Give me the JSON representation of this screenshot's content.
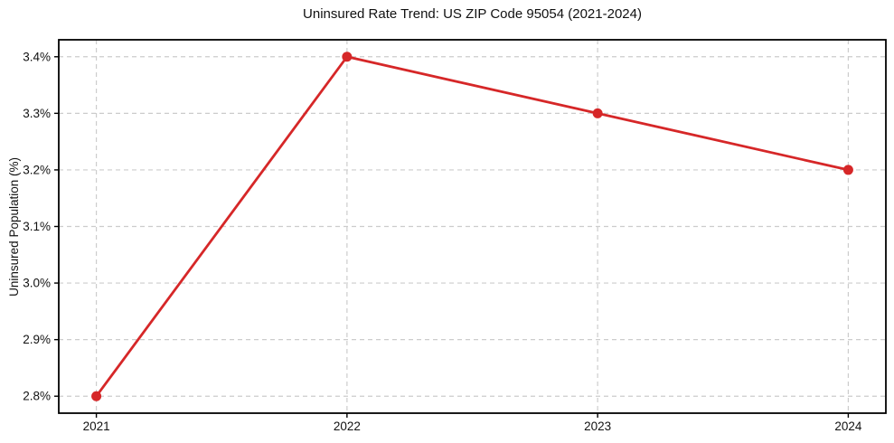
{
  "page": {
    "background": "#ffffff"
  },
  "chart_data": {
    "type": "line",
    "title": "Uninsured Rate Trend: US ZIP Code 95054 (2021-2024)",
    "xlabel": "",
    "ylabel": "Uninsured Population (%)",
    "x": [
      2021,
      2022,
      2023,
      2024
    ],
    "series": [
      {
        "name": "Uninsured Population (%)",
        "values": [
          2.8,
          3.4,
          3.3,
          3.2
        ],
        "color": "#d62728",
        "marker": "circle"
      }
    ],
    "xtick_labels": [
      "2021",
      "2022",
      "2023",
      "2024"
    ],
    "yticks": [
      2.8,
      2.9,
      3.0,
      3.1,
      3.2,
      3.3,
      3.4
    ],
    "ytick_labels": [
      "2.8%",
      "2.9%",
      "3.0%",
      "3.1%",
      "3.2%",
      "3.3%",
      "3.4%"
    ],
    "xlim": [
      2020.85,
      2024.15
    ],
    "ylim": [
      2.77,
      3.43
    ],
    "grid": true,
    "grid_style": "dashed",
    "grid_color": "#cccccc",
    "axis_color": "#000000",
    "legend": "none"
  }
}
